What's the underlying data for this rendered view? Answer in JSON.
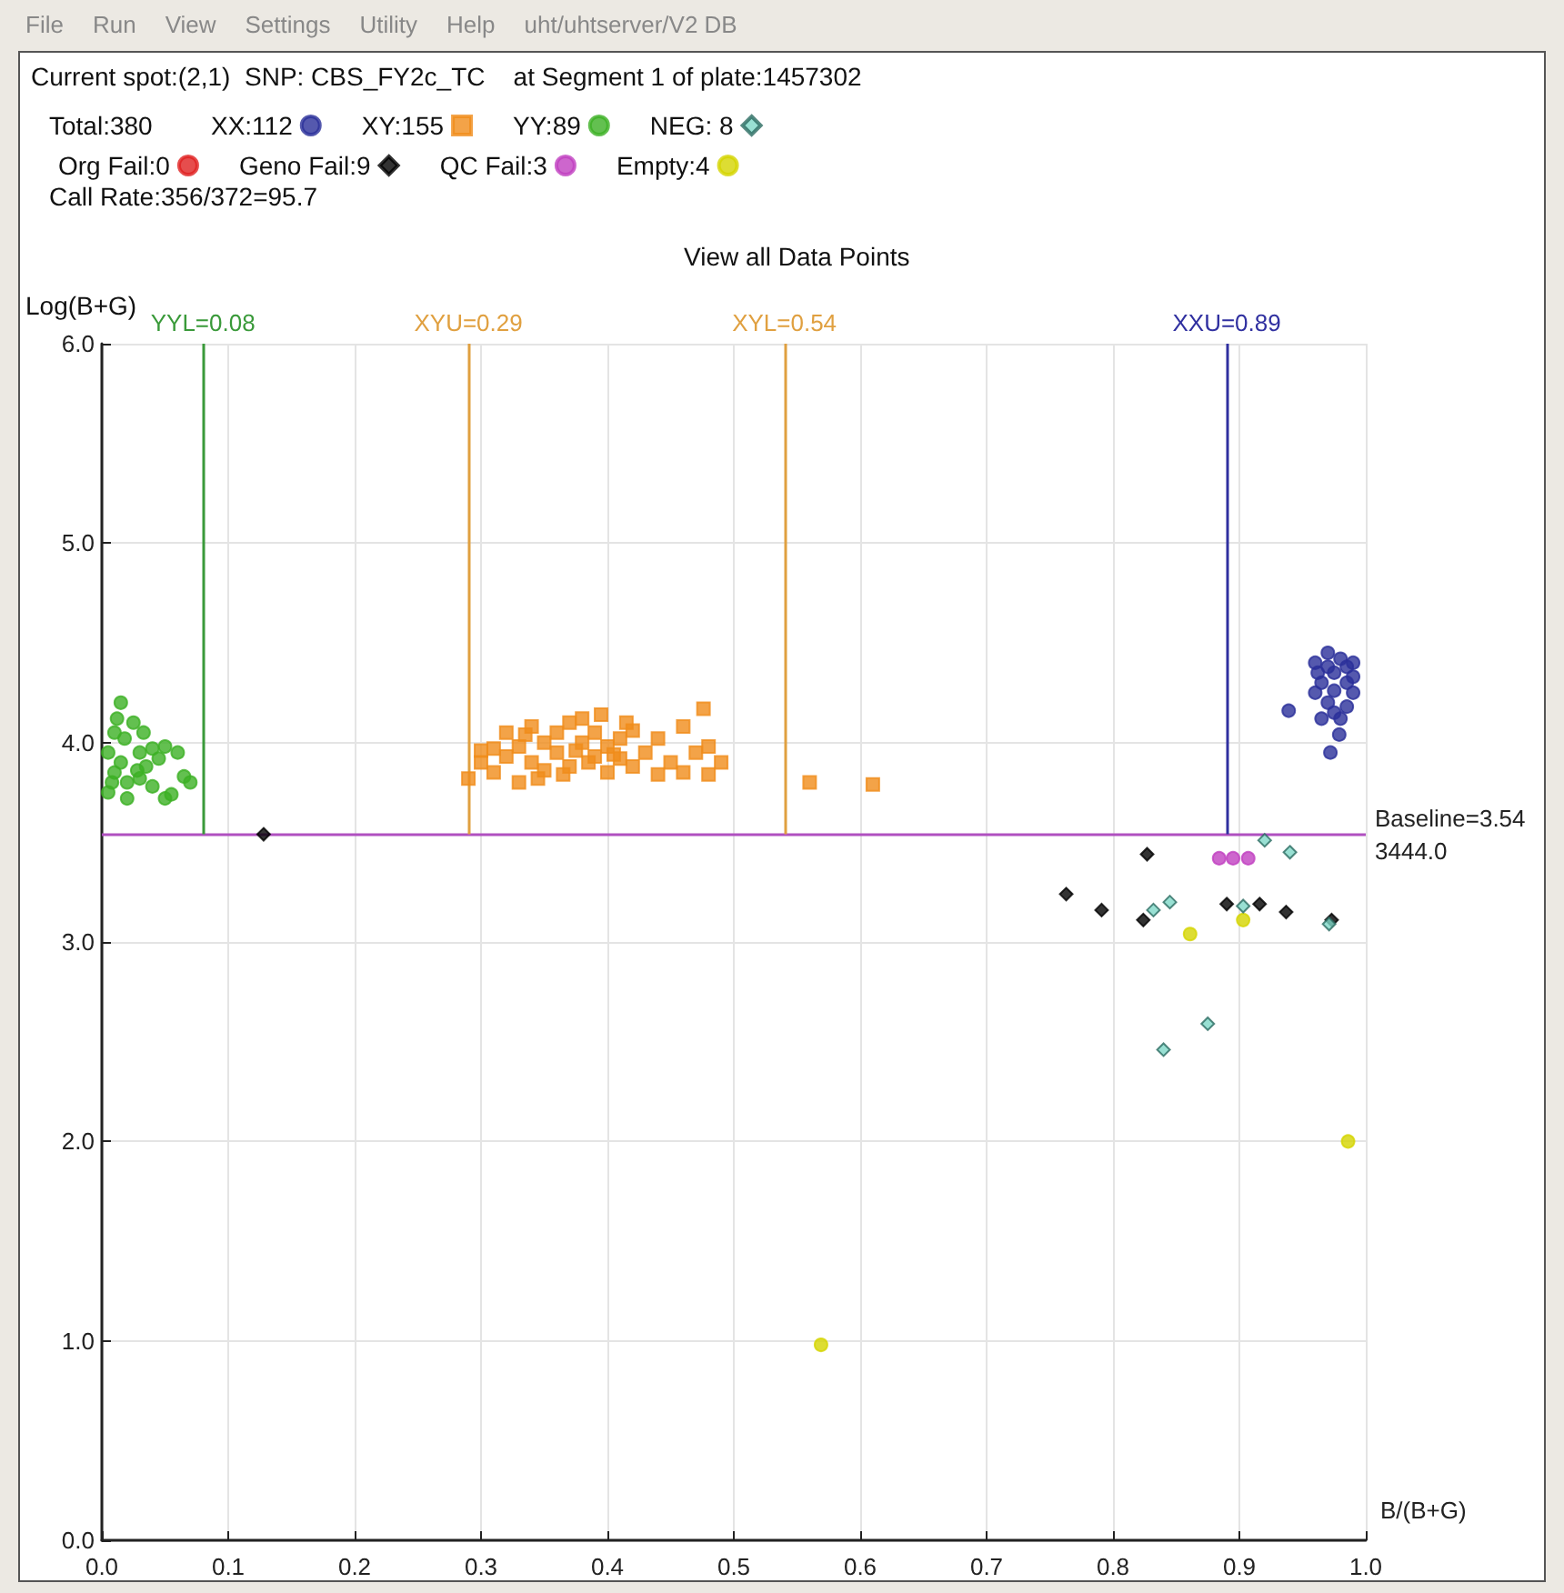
{
  "chart_data": {
    "type": "scatter",
    "title": "View all Data Points",
    "xlabel": "B/(B+G)",
    "ylabel": "Log(B+G)",
    "annotations": [
      "File",
      "Run",
      "View",
      "Settings",
      "Utility",
      "Help",
      "uht/uhtserver/V2 DB",
      "Current spot:(2,1)  SNP: CBS_FY2c_TC    at Segment 1 of plate:1457302",
      "Total:380",
      "Call Rate:356/372=95.7"
    ],
    "xlim": [
      0,
      1
    ],
    "ylim": [
      0,
      6
    ],
    "xticks": [
      {
        "value": 0,
        "label": "0.0"
      },
      0.1,
      0.2,
      0.3,
      0.4,
      0.5,
      0.6,
      0.7,
      0.8,
      0.9,
      {
        "value": 1,
        "label": "1.0"
      }
    ],
    "yticks": [
      {
        "value": 0,
        "label": "0.0"
      },
      {
        "value": 1,
        "label": "1.0"
      },
      {
        "value": 2,
        "label": "2.0"
      },
      {
        "value": 3,
        "label": "3.0"
      },
      {
        "value": 4,
        "label": "4.0"
      },
      {
        "value": 5,
        "label": "5.0"
      },
      {
        "value": 6,
        "label": "6.0"
      }
    ],
    "grid": true,
    "legend": "top left",
    "ref_lines": [
      {
        "axis": "y",
        "value": 3.54,
        "label": "Baseline=3.54\n3444.0",
        "color": "#b050c0"
      },
      {
        "axis": "x",
        "value": 0.08,
        "label": "YYL=0.08",
        "color": "#3a9a3a"
      },
      {
        "axis": "x",
        "value": 0.29,
        "label": "XYU=0.29",
        "color": "#e0a040"
      },
      {
        "axis": "x",
        "value": 0.54,
        "label": "XYL=0.54",
        "color": "#e0a040"
      },
      {
        "axis": "x",
        "value": 0.89,
        "label": "XXU=0.89",
        "color": "#3030a0"
      }
    ],
    "series": [
      {
        "name": "XX:112",
        "color": "#2b2f9a",
        "marker": "circle",
        "x": [
          0.96,
          0.965,
          0.97,
          0.97,
          0.975,
          0.975,
          0.98,
          0.985,
          0.985,
          0.99,
          0.99,
          0.96,
          0.965,
          0.97,
          0.975,
          0.98,
          0.985,
          0.99,
          0.962,
          0.939,
          0.979,
          0.972
        ],
        "values": [
          4.4,
          4.3,
          4.45,
          4.2,
          4.35,
          4.15,
          4.42,
          4.38,
          4.18,
          4.33,
          4.25,
          4.25,
          4.12,
          4.38,
          4.26,
          4.12,
          4.3,
          4.4,
          4.35,
          4.16,
          4.04,
          3.95
        ]
      },
      {
        "name": "XY:155",
        "color": "#f08c1a",
        "marker": "square",
        "x": [
          0.29,
          0.3,
          0.31,
          0.31,
          0.32,
          0.32,
          0.33,
          0.33,
          0.34,
          0.34,
          0.35,
          0.35,
          0.36,
          0.36,
          0.37,
          0.37,
          0.38,
          0.38,
          0.39,
          0.39,
          0.4,
          0.4,
          0.41,
          0.41,
          0.42,
          0.42,
          0.43,
          0.44,
          0.44,
          0.45,
          0.46,
          0.46,
          0.47,
          0.48,
          0.48,
          0.49,
          0.3,
          0.335,
          0.345,
          0.365,
          0.375,
          0.385,
          0.395,
          0.405,
          0.415,
          0.476,
          0.56,
          0.61
        ],
        "values": [
          3.82,
          3.9,
          3.97,
          3.85,
          3.93,
          4.05,
          3.8,
          3.98,
          4.08,
          3.9,
          4.0,
          3.86,
          4.05,
          3.95,
          4.1,
          3.88,
          4.0,
          4.12,
          3.93,
          4.05,
          3.98,
          3.85,
          4.02,
          3.92,
          3.88,
          4.06,
          3.95,
          3.84,
          4.02,
          3.9,
          4.08,
          3.85,
          3.95,
          3.84,
          3.98,
          3.9,
          3.96,
          4.04,
          3.82,
          3.84,
          3.96,
          3.9,
          4.14,
          3.94,
          4.1,
          4.17,
          3.8,
          3.79
        ]
      },
      {
        "name": "YY:89",
        "color": "#3cb024",
        "marker": "circle",
        "x": [
          0.005,
          0.01,
          0.015,
          0.01,
          0.02,
          0.03,
          0.025,
          0.015,
          0.005,
          0.035,
          0.04,
          0.045,
          0.05,
          0.06,
          0.03,
          0.04,
          0.05,
          0.055,
          0.07,
          0.065,
          0.02,
          0.012,
          0.008,
          0.028,
          0.018,
          0.033
        ],
        "values": [
          3.95,
          4.05,
          3.9,
          3.85,
          3.8,
          3.95,
          4.1,
          4.2,
          3.75,
          3.88,
          3.97,
          3.92,
          3.98,
          3.95,
          3.82,
          3.78,
          3.72,
          3.74,
          3.8,
          3.83,
          3.72,
          4.12,
          3.8,
          3.86,
          4.02,
          4.05
        ]
      },
      {
        "name": "NEG: 8",
        "color": "#7fd8c8",
        "marker": "diamond",
        "x": [
          0.92,
          0.94,
          0.832,
          0.845,
          0.903,
          0.971,
          0.875,
          0.84
        ],
        "values": [
          3.51,
          3.45,
          3.16,
          3.2,
          3.18,
          3.09,
          2.59,
          2.46
        ]
      },
      {
        "name": "Org Fail:0",
        "color": "#e02020",
        "marker": "circle"
      },
      {
        "name": "Geno Fail:9",
        "color": "#000000",
        "marker": "diamond",
        "x": [
          0.128,
          0.827,
          0.791,
          0.824,
          0.89,
          0.916,
          0.937,
          0.973,
          0.763
        ],
        "values": [
          3.54,
          3.44,
          3.16,
          3.11,
          3.19,
          3.19,
          3.15,
          3.11,
          3.24
        ]
      },
      {
        "name": "QC Fail:3",
        "color": "#c040c0",
        "marker": "circle",
        "x": [
          0.884,
          0.895,
          0.907
        ],
        "values": [
          3.42,
          3.42,
          3.42
        ]
      },
      {
        "name": "Empty:4",
        "color": "#d4d400",
        "marker": "circle",
        "x": [
          0.861,
          0.903,
          0.986,
          0.569
        ],
        "values": [
          3.04,
          3.11,
          2.0,
          0.98
        ]
      }
    ]
  }
}
